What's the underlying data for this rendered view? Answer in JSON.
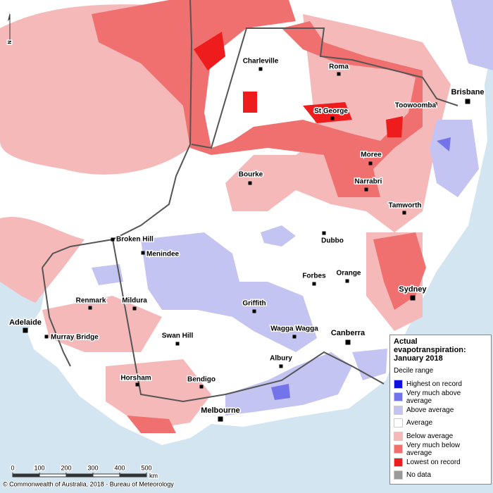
{
  "north_arrow": "N",
  "places": [
    "Charleville",
    "Roma",
    "St George",
    "Toowoomba",
    "Brisbane",
    "Moree",
    "Narrabri",
    "Bourke",
    "Tamworth",
    "Broken Hill",
    "Menindee",
    "Dubbo",
    "Orange",
    "Forbes",
    "Renmark",
    "Mildura",
    "Sydney",
    "Griffith",
    "Wagga Wagga",
    "Canberra",
    "Adelaide",
    "Murray Bridge",
    "Swan Hill",
    "Albury",
    "Horsham",
    "Bendigo",
    "Melbourne"
  ],
  "legend": {
    "title": "Actual evapotranspiration: January 2018",
    "subtitle": "Decile range",
    "items": [
      {
        "label": "Highest on record",
        "color": "#1010e0"
      },
      {
        "label": "Very much above average",
        "color": "#7474ea"
      },
      {
        "label": "Above average",
        "color": "#c4c4f2"
      },
      {
        "label": "Average",
        "color": "#ffffff"
      },
      {
        "label": "Below average",
        "color": "#f6b9b9"
      },
      {
        "label": "Very much below average",
        "color": "#f07070"
      },
      {
        "label": "Lowest on record",
        "color": "#ee1c1c"
      },
      {
        "label": "No data",
        "color": "#9a9a9a"
      }
    ]
  },
  "scale": {
    "ticks": [
      0,
      100,
      200,
      300,
      400,
      500
    ],
    "unit": "km"
  },
  "credit": "© Commonwealth of Australia, 2018 - Bureau of Meteorology"
}
